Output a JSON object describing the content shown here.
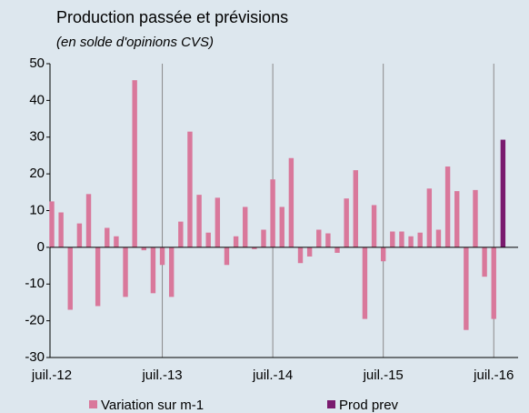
{
  "chart_data": {
    "type": "bar",
    "title": "Production passée et prévisions",
    "subtitle": "(en solde d'opinions CVS)",
    "categories": [
      "juil.-12",
      null,
      null,
      null,
      null,
      null,
      null,
      null,
      null,
      null,
      null,
      null,
      "juil.-13",
      null,
      null,
      null,
      null,
      null,
      null,
      null,
      null,
      null,
      null,
      null,
      "juil.-14",
      null,
      null,
      null,
      null,
      null,
      null,
      null,
      null,
      null,
      null,
      null,
      "juil.-15",
      null,
      null,
      null,
      null,
      null,
      null,
      null,
      null,
      null,
      null,
      null,
      "juil.-16",
      null
    ],
    "series": [
      {
        "name": "Variation sur m-1",
        "color": "#d9789b",
        "values": [
          12.5,
          9.5,
          -17,
          6.5,
          14.5,
          -16,
          5.3,
          3,
          -13.5,
          45.5,
          -0.8,
          -12.5,
          -4.8,
          -13.5,
          7,
          31.5,
          14.3,
          4,
          13.5,
          -4.8,
          3,
          11,
          -0.5,
          4.8,
          18.5,
          11,
          24.3,
          -4.3,
          -2.5,
          4.8,
          3.8,
          -1.5,
          13.3,
          21,
          -19.5,
          11.5,
          -3.8,
          4.3,
          4.3,
          3,
          4,
          16,
          4.8,
          22,
          15.3,
          -22.5,
          15.6,
          -8,
          -19.5,
          null
        ]
      },
      {
        "name": "Prod prev",
        "color": "#7a1b6f",
        "values": [
          null,
          null,
          null,
          null,
          null,
          null,
          null,
          null,
          null,
          null,
          null,
          null,
          null,
          null,
          null,
          null,
          null,
          null,
          null,
          null,
          null,
          null,
          null,
          null,
          null,
          null,
          null,
          null,
          null,
          null,
          null,
          null,
          null,
          null,
          null,
          null,
          null,
          null,
          null,
          null,
          null,
          null,
          null,
          null,
          null,
          null,
          null,
          null,
          null,
          29.3
        ]
      }
    ],
    "ylim": [
      -30,
      50
    ],
    "yticks": [
      -30,
      -20,
      -10,
      0,
      10,
      20,
      30,
      40,
      50
    ],
    "grid": true
  }
}
